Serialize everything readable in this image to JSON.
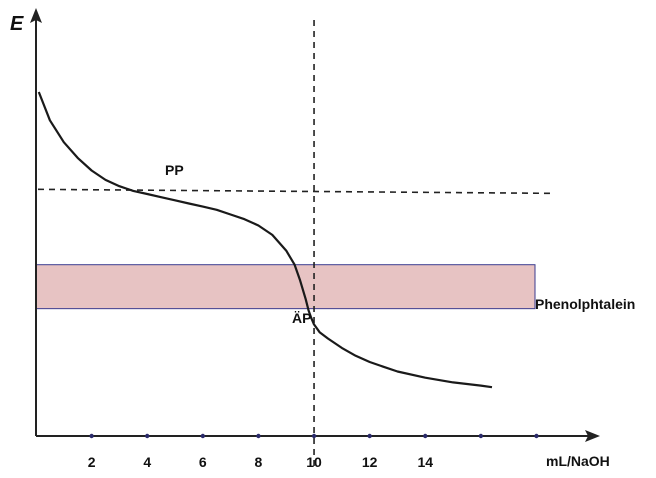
{
  "chart_data": {
    "type": "line",
    "ylabel": "E",
    "xlabel": "mL/NaOH",
    "x_ticks": [
      2,
      4,
      6,
      8,
      10,
      12,
      14
    ],
    "xlim": [
      0,
      19
    ],
    "ylim": [
      0,
      10
    ],
    "y_tick_labels_shown": false,
    "grid": false,
    "series": [
      {
        "x": [
          0.1,
          0.5,
          1.0,
          1.5,
          2.0,
          2.5,
          3.0,
          3.5,
          4.0,
          4.5,
          5.0,
          5.5,
          6.0,
          6.5,
          7.0,
          7.5,
          8.0,
          8.5,
          9.0,
          9.3,
          9.5,
          9.7,
          9.8,
          9.9,
          10.0,
          10.2,
          10.5,
          11.0,
          11.5,
          12.0,
          12.5,
          13.0,
          14.0,
          15.0,
          16.0,
          16.4
        ],
        "y": [
          10.0,
          9.1,
          8.4,
          7.9,
          7.5,
          7.2,
          7.0,
          6.85,
          6.75,
          6.65,
          6.55,
          6.45,
          6.35,
          6.25,
          6.1,
          5.95,
          5.75,
          5.45,
          4.95,
          4.5,
          4.0,
          3.4,
          3.05,
          2.8,
          2.6,
          2.35,
          2.15,
          1.85,
          1.6,
          1.4,
          1.25,
          1.1,
          0.9,
          0.75,
          0.65,
          0.6
        ]
      }
    ],
    "annotations": {
      "pp_label": "PP",
      "pp_level": 6.9,
      "ap_label": "ÄP",
      "equivalence_x": 10,
      "indicator_band_label": "Phenolphtalein",
      "indicator_band": [
        3.1,
        4.5
      ],
      "indicator_band_color": "#e7c3c3"
    }
  }
}
